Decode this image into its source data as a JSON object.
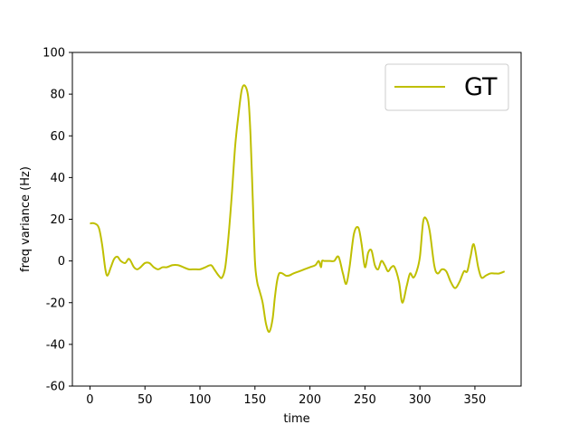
{
  "chart_data": {
    "type": "line",
    "title": "",
    "xlabel": "time",
    "ylabel": "freq variance (Hz)",
    "xlim": [
      -16,
      392
    ],
    "ylim": [
      -60,
      100
    ],
    "xticks": [
      0,
      50,
      100,
      150,
      200,
      250,
      300,
      350
    ],
    "yticks": [
      -60,
      -40,
      -20,
      0,
      20,
      40,
      60,
      80,
      100
    ],
    "grid": false,
    "legend_position": "top-right",
    "series": [
      {
        "name": "GT",
        "color": "#bfbf00",
        "x": [
          0,
          4,
          8,
          11,
          14,
          16,
          19,
          22,
          25,
          28,
          32,
          35,
          37,
          40,
          43,
          46,
          50,
          54,
          58,
          62,
          66,
          70,
          75,
          80,
          85,
          90,
          95,
          100,
          105,
          110,
          113,
          117,
          120,
          123,
          126,
          129,
          132,
          135,
          138,
          141,
          144,
          146,
          148,
          150,
          152,
          154,
          157,
          160,
          163,
          166,
          168,
          170,
          172,
          175,
          178,
          181,
          185,
          190,
          195,
          200,
          205,
          208,
          210,
          211,
          213,
          215,
          218,
          222,
          226,
          230,
          233,
          236,
          240,
          244,
          247,
          250,
          253,
          256,
          259,
          262,
          265,
          268,
          271,
          274,
          277,
          281,
          284,
          288,
          291,
          294,
          297,
          300,
          303,
          306,
          309,
          313,
          316,
          320,
          324,
          328,
          332,
          336,
          340,
          343,
          346,
          349,
          353,
          356,
          360,
          364,
          368,
          372,
          377
        ],
        "y": [
          18,
          18,
          16,
          8,
          -4,
          -7,
          -3,
          1,
          2,
          0,
          -1,
          1,
          0,
          -3,
          -4,
          -3,
          -1,
          -1,
          -3,
          -4,
          -3,
          -3,
          -2,
          -2,
          -3,
          -4,
          -4,
          -4,
          -3,
          -2,
          -4,
          -7,
          -8,
          -3,
          12,
          32,
          55,
          70,
          82,
          84,
          78,
          60,
          30,
          0,
          -10,
          -14,
          -20,
          -30,
          -34,
          -28,
          -18,
          -10,
          -6,
          -6,
          -7,
          -7,
          -6,
          -5,
          -4,
          -3,
          -2,
          0,
          -3,
          0,
          0,
          0,
          0,
          0,
          2,
          -6,
          -11,
          -3,
          13,
          16,
          8,
          -3,
          4,
          5,
          -2,
          -4,
          0,
          -2,
          -5,
          -3,
          -3,
          -10,
          -20,
          -12,
          -6,
          -8,
          -5,
          2,
          19,
          20,
          14,
          -2,
          -6,
          -4,
          -5,
          -10,
          -13,
          -10,
          -5,
          -5,
          2,
          8,
          -3,
          -8,
          -7,
          -6,
          -6,
          -6,
          -5
        ]
      }
    ]
  }
}
